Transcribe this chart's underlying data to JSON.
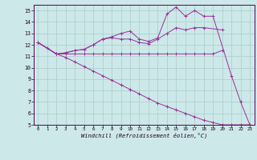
{
  "xlabel": "Windchill (Refroidissement éolien,°C)",
  "background_color": "#cce8e8",
  "grid_color": "#aacccc",
  "line_color": "#993399",
  "xlim": [
    -0.5,
    23.5
  ],
  "ylim": [
    5,
    15.5
  ],
  "xticks": [
    0,
    1,
    2,
    3,
    4,
    5,
    6,
    7,
    8,
    9,
    10,
    11,
    12,
    13,
    14,
    15,
    16,
    17,
    18,
    19,
    20,
    21,
    22,
    23
  ],
  "yticks": [
    5,
    6,
    7,
    8,
    9,
    10,
    11,
    12,
    13,
    14,
    15
  ],
  "line_flat_x": [
    0,
    1,
    2,
    3,
    4,
    5,
    6,
    7,
    8,
    9,
    10,
    11,
    12,
    13,
    14,
    15,
    16,
    17,
    18,
    19,
    20
  ],
  "line_flat_y": [
    12.2,
    11.7,
    11.2,
    11.2,
    11.2,
    11.2,
    11.2,
    11.2,
    11.2,
    11.2,
    11.2,
    11.2,
    11.2,
    11.2,
    11.2,
    11.2,
    11.2,
    11.2,
    11.2,
    11.2,
    11.5
  ],
  "line_mid_x": [
    0,
    2,
    3,
    4,
    5,
    6,
    7,
    8,
    9,
    10,
    11,
    12,
    13,
    14,
    15,
    16,
    17,
    18,
    20
  ],
  "line_mid_y": [
    12.2,
    11.2,
    11.3,
    11.5,
    11.6,
    12.0,
    12.5,
    12.6,
    12.5,
    12.5,
    12.2,
    12.1,
    12.5,
    13.0,
    13.5,
    13.3,
    13.5,
    13.5,
    13.3
  ],
  "line_top_x": [
    0,
    2,
    3,
    4,
    5,
    6,
    7,
    8,
    9,
    10,
    11,
    12,
    13,
    14,
    15,
    16,
    17,
    18,
    19,
    21,
    22,
    23
  ],
  "line_top_y": [
    12.2,
    11.2,
    11.3,
    11.5,
    11.6,
    12.0,
    12.5,
    12.7,
    13.0,
    13.2,
    12.5,
    12.3,
    12.6,
    14.7,
    15.3,
    14.5,
    15.0,
    14.5,
    14.5,
    9.3,
    7.0,
    5.0
  ],
  "line_desc_x": [
    0,
    2,
    3,
    4,
    5,
    6,
    7,
    8,
    9,
    10,
    11,
    12,
    13,
    14,
    15,
    16,
    17,
    18,
    19,
    20,
    21,
    22,
    23
  ],
  "line_desc_y": [
    12.2,
    11.2,
    10.9,
    10.5,
    10.1,
    9.7,
    9.3,
    8.9,
    8.5,
    8.1,
    7.7,
    7.3,
    6.9,
    6.6,
    6.3,
    6.0,
    5.7,
    5.4,
    5.2,
    5.0,
    5.0,
    5.0,
    5.0
  ]
}
